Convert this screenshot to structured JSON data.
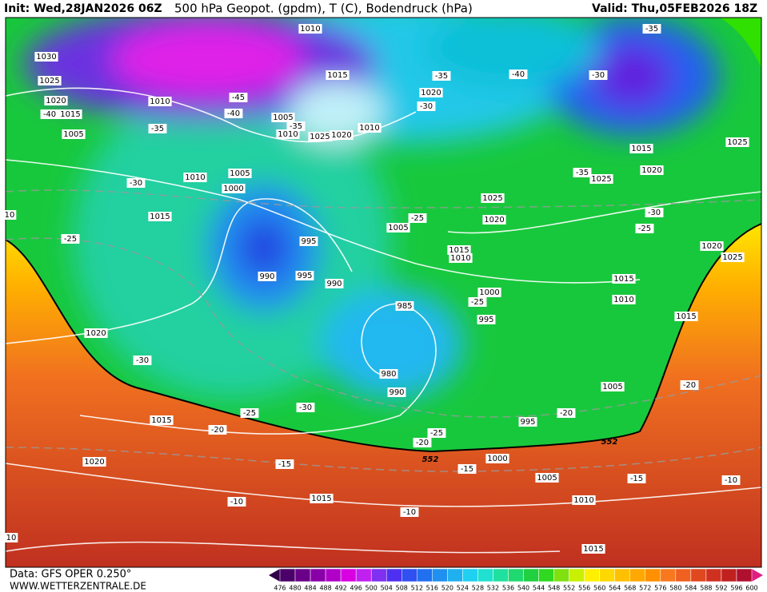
{
  "header": {
    "init": "Init: Wed,28JAN2026 06Z",
    "title": "500 hPa Geopot. (gpdm), T (C), Bodendruck (hPa)",
    "valid": "Valid: Thu,05FEB2026 18Z"
  },
  "footer": {
    "source": "Data: GFS OPER 0.250°",
    "website": "WWW.WETTERZENTRALE.DE"
  },
  "colorbar": {
    "ticks": [
      476,
      480,
      484,
      488,
      492,
      496,
      500,
      504,
      508,
      512,
      516,
      520,
      524,
      528,
      532,
      536,
      540,
      544,
      548,
      552,
      556,
      560,
      564,
      568,
      572,
      576,
      580,
      584,
      588,
      592,
      596,
      600
    ]
  },
  "contour_labels": [
    "1010",
    "1030",
    "1025",
    "1020",
    "-40",
    "1015",
    "1005",
    "1010",
    "-45",
    "-40",
    "-35",
    "1005",
    "-35",
    "1010",
    "1025",
    "1020",
    "1015",
    "1010",
    "-35",
    "1020",
    "-30",
    "-40",
    "-35",
    "-30",
    "1015",
    "1025",
    "1020",
    "-35",
    "1025",
    "1025",
    "1020",
    "-30",
    "-25",
    "1020",
    "1025",
    "-30",
    "1010",
    "1005",
    "1000",
    "1015",
    "-25",
    "10",
    "995",
    "1005",
    "-25",
    "1015",
    "1010",
    "990",
    "995",
    "990",
    "985",
    "1000",
    "-25",
    "995",
    "1015",
    "1010",
    "1015",
    "1020",
    "-30",
    "980",
    "990",
    "1005",
    "-20",
    "-25",
    "-30",
    "995",
    "-20",
    "1015",
    "-20",
    "-25",
    "-20",
    "552",
    "552",
    "1000",
    "-15",
    "-15",
    "1020",
    "1005",
    "-15",
    "-10",
    "-10",
    "1015",
    "1010",
    "-10",
    "10",
    "1015"
  ]
}
